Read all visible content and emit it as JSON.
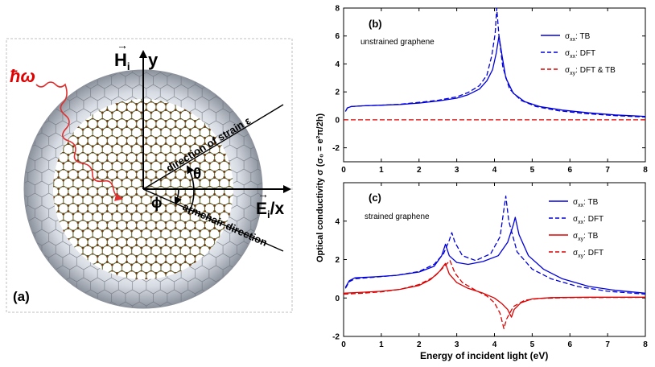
{
  "panel_a": {
    "label": "(a)",
    "photon": "ħω",
    "h_axis": "H",
    "h_sub": "i",
    "y_axis": "y",
    "e_axis": "E",
    "e_sub": "i",
    "x_axis": "/x",
    "strain_label": "direction of strain ε",
    "armchair_label": "armchair direction",
    "theta": "θ",
    "phi": "ϕ"
  },
  "shared": {
    "ylabel": "Optical conductivity σ (σ₀ = e²π/2h)",
    "xlabel": "Energy of incident light (eV)",
    "xticks": [
      "0",
      "1",
      "2",
      "3",
      "4",
      "5",
      "6",
      "7",
      "8"
    ]
  },
  "colors": {
    "blue": "#0000dd",
    "red": "#dd0000",
    "axis": "#000000"
  },
  "chart_data": [
    {
      "type": "line",
      "panel": "(b)",
      "annotation": "unstrained graphene",
      "xlim": [
        0,
        8
      ],
      "ylim": [
        -3,
        8
      ],
      "yticks": [
        "-2",
        "0",
        "2",
        "4",
        "6",
        "8"
      ],
      "legend": [
        {
          "sym": "σ",
          "sub": "xx",
          "text": ": TB",
          "color": "blue",
          "dash": false
        },
        {
          "sym": "σ",
          "sub": "xx",
          "text": ": DFT",
          "color": "blue",
          "dash": true
        },
        {
          "sym": "σ",
          "sub": "xy",
          "text": ": DFT & TB",
          "color": "red",
          "dash": true
        }
      ],
      "series": [
        {
          "name": "σxx: TB",
          "color": "blue",
          "dash": false,
          "points": [
            [
              0.05,
              0.6
            ],
            [
              0.1,
              0.85
            ],
            [
              0.2,
              0.95
            ],
            [
              0.5,
              1.0
            ],
            [
              1,
              1.05
            ],
            [
              1.5,
              1.1
            ],
            [
              2,
              1.2
            ],
            [
              2.5,
              1.35
            ],
            [
              3,
              1.55
            ],
            [
              3.3,
              1.8
            ],
            [
              3.6,
              2.2
            ],
            [
              3.8,
              2.8
            ],
            [
              3.95,
              3.6
            ],
            [
              4.05,
              4.8
            ],
            [
              4.12,
              6.0
            ],
            [
              4.2,
              4.6
            ],
            [
              4.3,
              3.0
            ],
            [
              4.5,
              1.9
            ],
            [
              4.8,
              1.3
            ],
            [
              5.2,
              0.95
            ],
            [
              5.8,
              0.7
            ],
            [
              6.5,
              0.5
            ],
            [
              7.2,
              0.35
            ],
            [
              8,
              0.25
            ]
          ]
        },
        {
          "name": "σxx: DFT",
          "color": "blue",
          "dash": true,
          "points": [
            [
              0.05,
              0.6
            ],
            [
              0.1,
              0.85
            ],
            [
              0.2,
              0.95
            ],
            [
              0.5,
              1.0
            ],
            [
              1,
              1.05
            ],
            [
              1.5,
              1.12
            ],
            [
              2,
              1.25
            ],
            [
              2.5,
              1.4
            ],
            [
              3,
              1.65
            ],
            [
              3.3,
              1.95
            ],
            [
              3.6,
              2.45
            ],
            [
              3.8,
              3.2
            ],
            [
              3.93,
              4.6
            ],
            [
              4.02,
              6.2
            ],
            [
              4.06,
              8.0
            ],
            [
              4.12,
              6.0
            ],
            [
              4.22,
              3.8
            ],
            [
              4.4,
              2.2
            ],
            [
              4.7,
              1.4
            ],
            [
              5.1,
              0.95
            ],
            [
              5.7,
              0.65
            ],
            [
              6.4,
              0.45
            ],
            [
              7.2,
              0.3
            ],
            [
              8,
              0.2
            ]
          ]
        },
        {
          "name": "σxy: DFT & TB",
          "color": "red",
          "dash": true,
          "points": [
            [
              0,
              0
            ],
            [
              8,
              0
            ]
          ]
        }
      ]
    },
    {
      "type": "line",
      "panel": "(c)",
      "annotation": "strained graphene",
      "xlim": [
        0,
        8
      ],
      "ylim": [
        -2,
        6
      ],
      "yticks": [
        "-2",
        "0",
        "2",
        "4"
      ],
      "legend": [
        {
          "sym": "σ",
          "sub": "xx",
          "text": ": TB",
          "color": "blue",
          "dash": false
        },
        {
          "sym": "σ",
          "sub": "xx",
          "text": ": DFT",
          "color": "blue",
          "dash": true
        },
        {
          "sym": "σ",
          "sub": "xy",
          "text": ": TB",
          "color": "red",
          "dash": false
        },
        {
          "sym": "σ",
          "sub": "xy",
          "text": ": DFT",
          "color": "red",
          "dash": true
        }
      ],
      "series": [
        {
          "name": "σxx: TB",
          "color": "blue",
          "dash": false,
          "points": [
            [
              0.05,
              0.55
            ],
            [
              0.15,
              0.9
            ],
            [
              0.3,
              1.05
            ],
            [
              0.8,
              1.1
            ],
            [
              1.4,
              1.18
            ],
            [
              2,
              1.35
            ],
            [
              2.4,
              1.65
            ],
            [
              2.6,
              2.2
            ],
            [
              2.7,
              2.8
            ],
            [
              2.8,
              2.2
            ],
            [
              3,
              1.85
            ],
            [
              3.3,
              1.75
            ],
            [
              3.7,
              1.9
            ],
            [
              4.1,
              2.2
            ],
            [
              4.35,
              2.9
            ],
            [
              4.5,
              3.8
            ],
            [
              4.55,
              4.2
            ],
            [
              4.65,
              3.3
            ],
            [
              4.9,
              2.2
            ],
            [
              5.3,
              1.5
            ],
            [
              5.8,
              1.0
            ],
            [
              6.5,
              0.6
            ],
            [
              7.2,
              0.4
            ],
            [
              8,
              0.25
            ]
          ]
        },
        {
          "name": "σxx: DFT",
          "color": "blue",
          "dash": true,
          "points": [
            [
              0.05,
              0.5
            ],
            [
              0.15,
              0.85
            ],
            [
              0.3,
              1.0
            ],
            [
              0.8,
              1.08
            ],
            [
              1.4,
              1.18
            ],
            [
              2,
              1.38
            ],
            [
              2.4,
              1.75
            ],
            [
              2.65,
              2.3
            ],
            [
              2.8,
              3.0
            ],
            [
              2.87,
              3.4
            ],
            [
              2.95,
              2.9
            ],
            [
              3.15,
              2.2
            ],
            [
              3.5,
              1.95
            ],
            [
              3.9,
              2.3
            ],
            [
              4.15,
              3.2
            ],
            [
              4.25,
              4.6
            ],
            [
              4.3,
              5.3
            ],
            [
              4.38,
              4.0
            ],
            [
              4.6,
              2.4
            ],
            [
              5,
              1.5
            ],
            [
              5.5,
              1.0
            ],
            [
              6.2,
              0.6
            ],
            [
              7,
              0.35
            ],
            [
              8,
              0.2
            ]
          ]
        },
        {
          "name": "σxy: TB",
          "color": "red",
          "dash": false,
          "points": [
            [
              0,
              0.25
            ],
            [
              0.5,
              0.3
            ],
            [
              1,
              0.35
            ],
            [
              1.5,
              0.45
            ],
            [
              2,
              0.65
            ],
            [
              2.3,
              0.95
            ],
            [
              2.55,
              1.4
            ],
            [
              2.7,
              1.8
            ],
            [
              2.8,
              1.25
            ],
            [
              3,
              0.8
            ],
            [
              3.3,
              0.5
            ],
            [
              3.7,
              0.25
            ],
            [
              4,
              0.0
            ],
            [
              4.2,
              -0.3
            ],
            [
              4.35,
              -0.6
            ],
            [
              4.45,
              -1.0
            ],
            [
              4.52,
              -0.6
            ],
            [
              4.7,
              -0.25
            ],
            [
              5,
              -0.05
            ],
            [
              5.5,
              0.02
            ],
            [
              6.5,
              0.04
            ],
            [
              8,
              0.04
            ]
          ]
        },
        {
          "name": "σxy: DFT",
          "color": "red",
          "dash": true,
          "points": [
            [
              0,
              0.2
            ],
            [
              0.5,
              0.25
            ],
            [
              1,
              0.32
            ],
            [
              1.5,
              0.45
            ],
            [
              2,
              0.7
            ],
            [
              2.4,
              1.1
            ],
            [
              2.65,
              1.6
            ],
            [
              2.82,
              1.95
            ],
            [
              2.95,
              1.3
            ],
            [
              3.15,
              0.8
            ],
            [
              3.5,
              0.4
            ],
            [
              3.8,
              0.1
            ],
            [
              4,
              -0.25
            ],
            [
              4.15,
              -0.8
            ],
            [
              4.25,
              -1.6
            ],
            [
              4.32,
              -1.1
            ],
            [
              4.5,
              -0.45
            ],
            [
              4.8,
              -0.12
            ],
            [
              5.2,
              -0.02
            ],
            [
              6,
              0.02
            ],
            [
              8,
              0.03
            ]
          ]
        }
      ]
    }
  ]
}
